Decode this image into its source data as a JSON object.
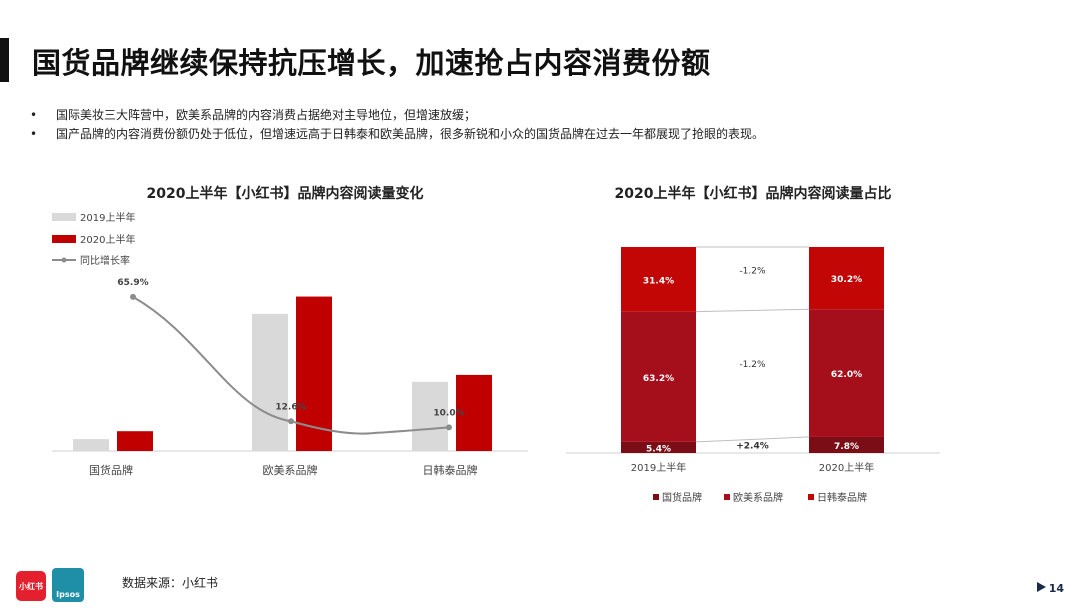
{
  "header": {
    "title": "国货品牌继续保持抗压增长，加速抢占内容消费份额"
  },
  "bullets": [
    "国际美妆三大阵营中，欧美系品牌的内容消费占据绝对主导地位，但增速放缓；",
    "国产品牌的内容消费份额仍处于低位，但增速远高于日韩泰和欧美品牌，很多新锐和小众的国货品牌在过去一年都展现了抢眼的表现。"
  ],
  "chart_data": [
    {
      "type": "bar",
      "title": "2020上半年【小红书】品牌内容阅读量变化",
      "categories": [
        "国货品牌",
        "欧美系品牌",
        "日韩泰品牌"
      ],
      "series": [
        {
          "name": "2019上半年",
          "values": [
            1.0,
            11.5,
            5.8
          ],
          "color": "#d9d9d9"
        },
        {
          "name": "2020上半年",
          "values": [
            1.66,
            12.95,
            6.38
          ],
          "color": "#c00000"
        }
      ],
      "line_series": {
        "name": "同比增长率",
        "values": [
          65.9,
          12.6,
          10.0
        ],
        "labels": [
          "65.9%",
          "12.6%",
          "10.0%"
        ],
        "color": "#8c8c8c"
      },
      "legend_position": "top-left",
      "grid": false
    },
    {
      "type": "bar",
      "stacked": true,
      "title": "2020上半年【小红书】品牌内容阅读量占比",
      "categories": [
        "2019上半年",
        "2020上半年"
      ],
      "series": [
        {
          "name": "国货品牌",
          "values": [
            5.4,
            7.8
          ],
          "labels": [
            "5.4%",
            "7.8%"
          ],
          "color": "#7b0d16"
        },
        {
          "name": "欧美系品牌",
          "values": [
            63.2,
            62.0
          ],
          "labels": [
            "63.2%",
            "62.0%"
          ],
          "color": "#a50f1b"
        },
        {
          "name": "日韩泰品牌",
          "values": [
            31.4,
            30.2
          ],
          "labels": [
            "31.4%",
            "30.2%"
          ],
          "color": "#c20606"
        }
      ],
      "change_labels": [
        "-1.2%",
        "-1.2%",
        "+2.4%"
      ],
      "legend_position": "bottom",
      "grid": false
    }
  ],
  "footer": {
    "source": "数据来源：小红书",
    "logo_left": "小红书",
    "logo_right": "Ipsos",
    "page_number": "14"
  }
}
